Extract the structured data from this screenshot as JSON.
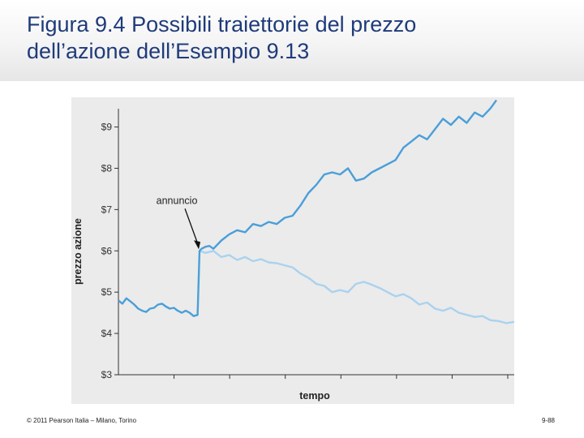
{
  "slide": {
    "title_line1": "Figura 9.4  Possibili traiettorie del prezzo",
    "title_line2": "dell’azione dell’Esempio 9.13",
    "footer_left": "© 2011 Pearson Italia – Milano, Torino",
    "footer_right": "9-88"
  },
  "colors": {
    "title": "#1f3b7a",
    "series_up": "#4a9fd8",
    "series_down": "#aad2ee",
    "panel": "#ebebeb"
  },
  "chart_data": {
    "type": "line",
    "title": "",
    "xlabel": "tempo",
    "ylabel": "prezzo azione",
    "xlim": [
      0,
      100
    ],
    "ylim": [
      3,
      9.6
    ],
    "yticks": [
      "$3",
      "$4",
      "$5",
      "$6",
      "$7",
      "$8",
      "$9"
    ],
    "ytick_values": [
      3,
      4,
      5,
      6,
      7,
      8,
      9
    ],
    "xticks_count": 7,
    "grid": false,
    "legend": "none",
    "annotation": {
      "text": "annuncio",
      "x": 20.5,
      "y": 6.0
    },
    "series": [
      {
        "key": "up",
        "x": [
          0,
          1,
          2,
          3,
          4,
          5,
          6,
          7,
          8,
          9,
          10,
          11,
          12,
          13,
          14,
          15,
          16,
          17,
          18,
          19,
          20,
          20.5,
          21,
          22,
          23,
          24,
          26,
          28,
          30,
          32,
          34,
          36,
          38,
          40,
          42,
          44,
          46,
          48,
          50,
          52,
          54,
          56,
          58,
          60,
          62,
          64,
          66,
          68,
          70,
          72,
          74,
          76,
          78,
          80,
          82,
          84,
          86,
          88,
          90,
          92,
          94,
          95.5
        ],
        "y": [
          4.8,
          4.72,
          4.85,
          4.78,
          4.7,
          4.6,
          4.55,
          4.52,
          4.6,
          4.62,
          4.7,
          4.72,
          4.65,
          4.6,
          4.62,
          4.55,
          4.5,
          4.55,
          4.5,
          4.42,
          4.45,
          6.0,
          6.05,
          6.1,
          6.12,
          6.05,
          6.25,
          6.4,
          6.5,
          6.45,
          6.65,
          6.6,
          6.7,
          6.65,
          6.8,
          6.85,
          7.1,
          7.4,
          7.6,
          7.85,
          7.9,
          7.85,
          8.0,
          7.7,
          7.75,
          7.9,
          8.0,
          8.1,
          8.2,
          8.5,
          8.65,
          8.8,
          8.7,
          8.95,
          9.2,
          9.05,
          9.25,
          9.1,
          9.35,
          9.25,
          9.45,
          9.65
        ]
      },
      {
        "key": "down",
        "x": [
          20.5,
          22,
          24,
          26,
          28,
          30,
          32,
          34,
          36,
          38,
          40,
          42,
          44,
          46,
          48,
          50,
          52,
          54,
          56,
          58,
          60,
          62,
          64,
          66,
          68,
          70,
          72,
          74,
          76,
          78,
          80,
          82,
          84,
          86,
          88,
          90,
          92,
          94,
          96,
          98,
          100
        ],
        "y": [
          6.0,
          5.95,
          6.0,
          5.85,
          5.9,
          5.78,
          5.85,
          5.75,
          5.8,
          5.72,
          5.7,
          5.65,
          5.6,
          5.45,
          5.35,
          5.2,
          5.15,
          5.0,
          5.05,
          5.0,
          5.2,
          5.25,
          5.18,
          5.1,
          5.0,
          4.9,
          4.95,
          4.85,
          4.7,
          4.75,
          4.6,
          4.55,
          4.62,
          4.5,
          4.45,
          4.4,
          4.42,
          4.32,
          4.3,
          4.25,
          4.28
        ]
      }
    ]
  }
}
